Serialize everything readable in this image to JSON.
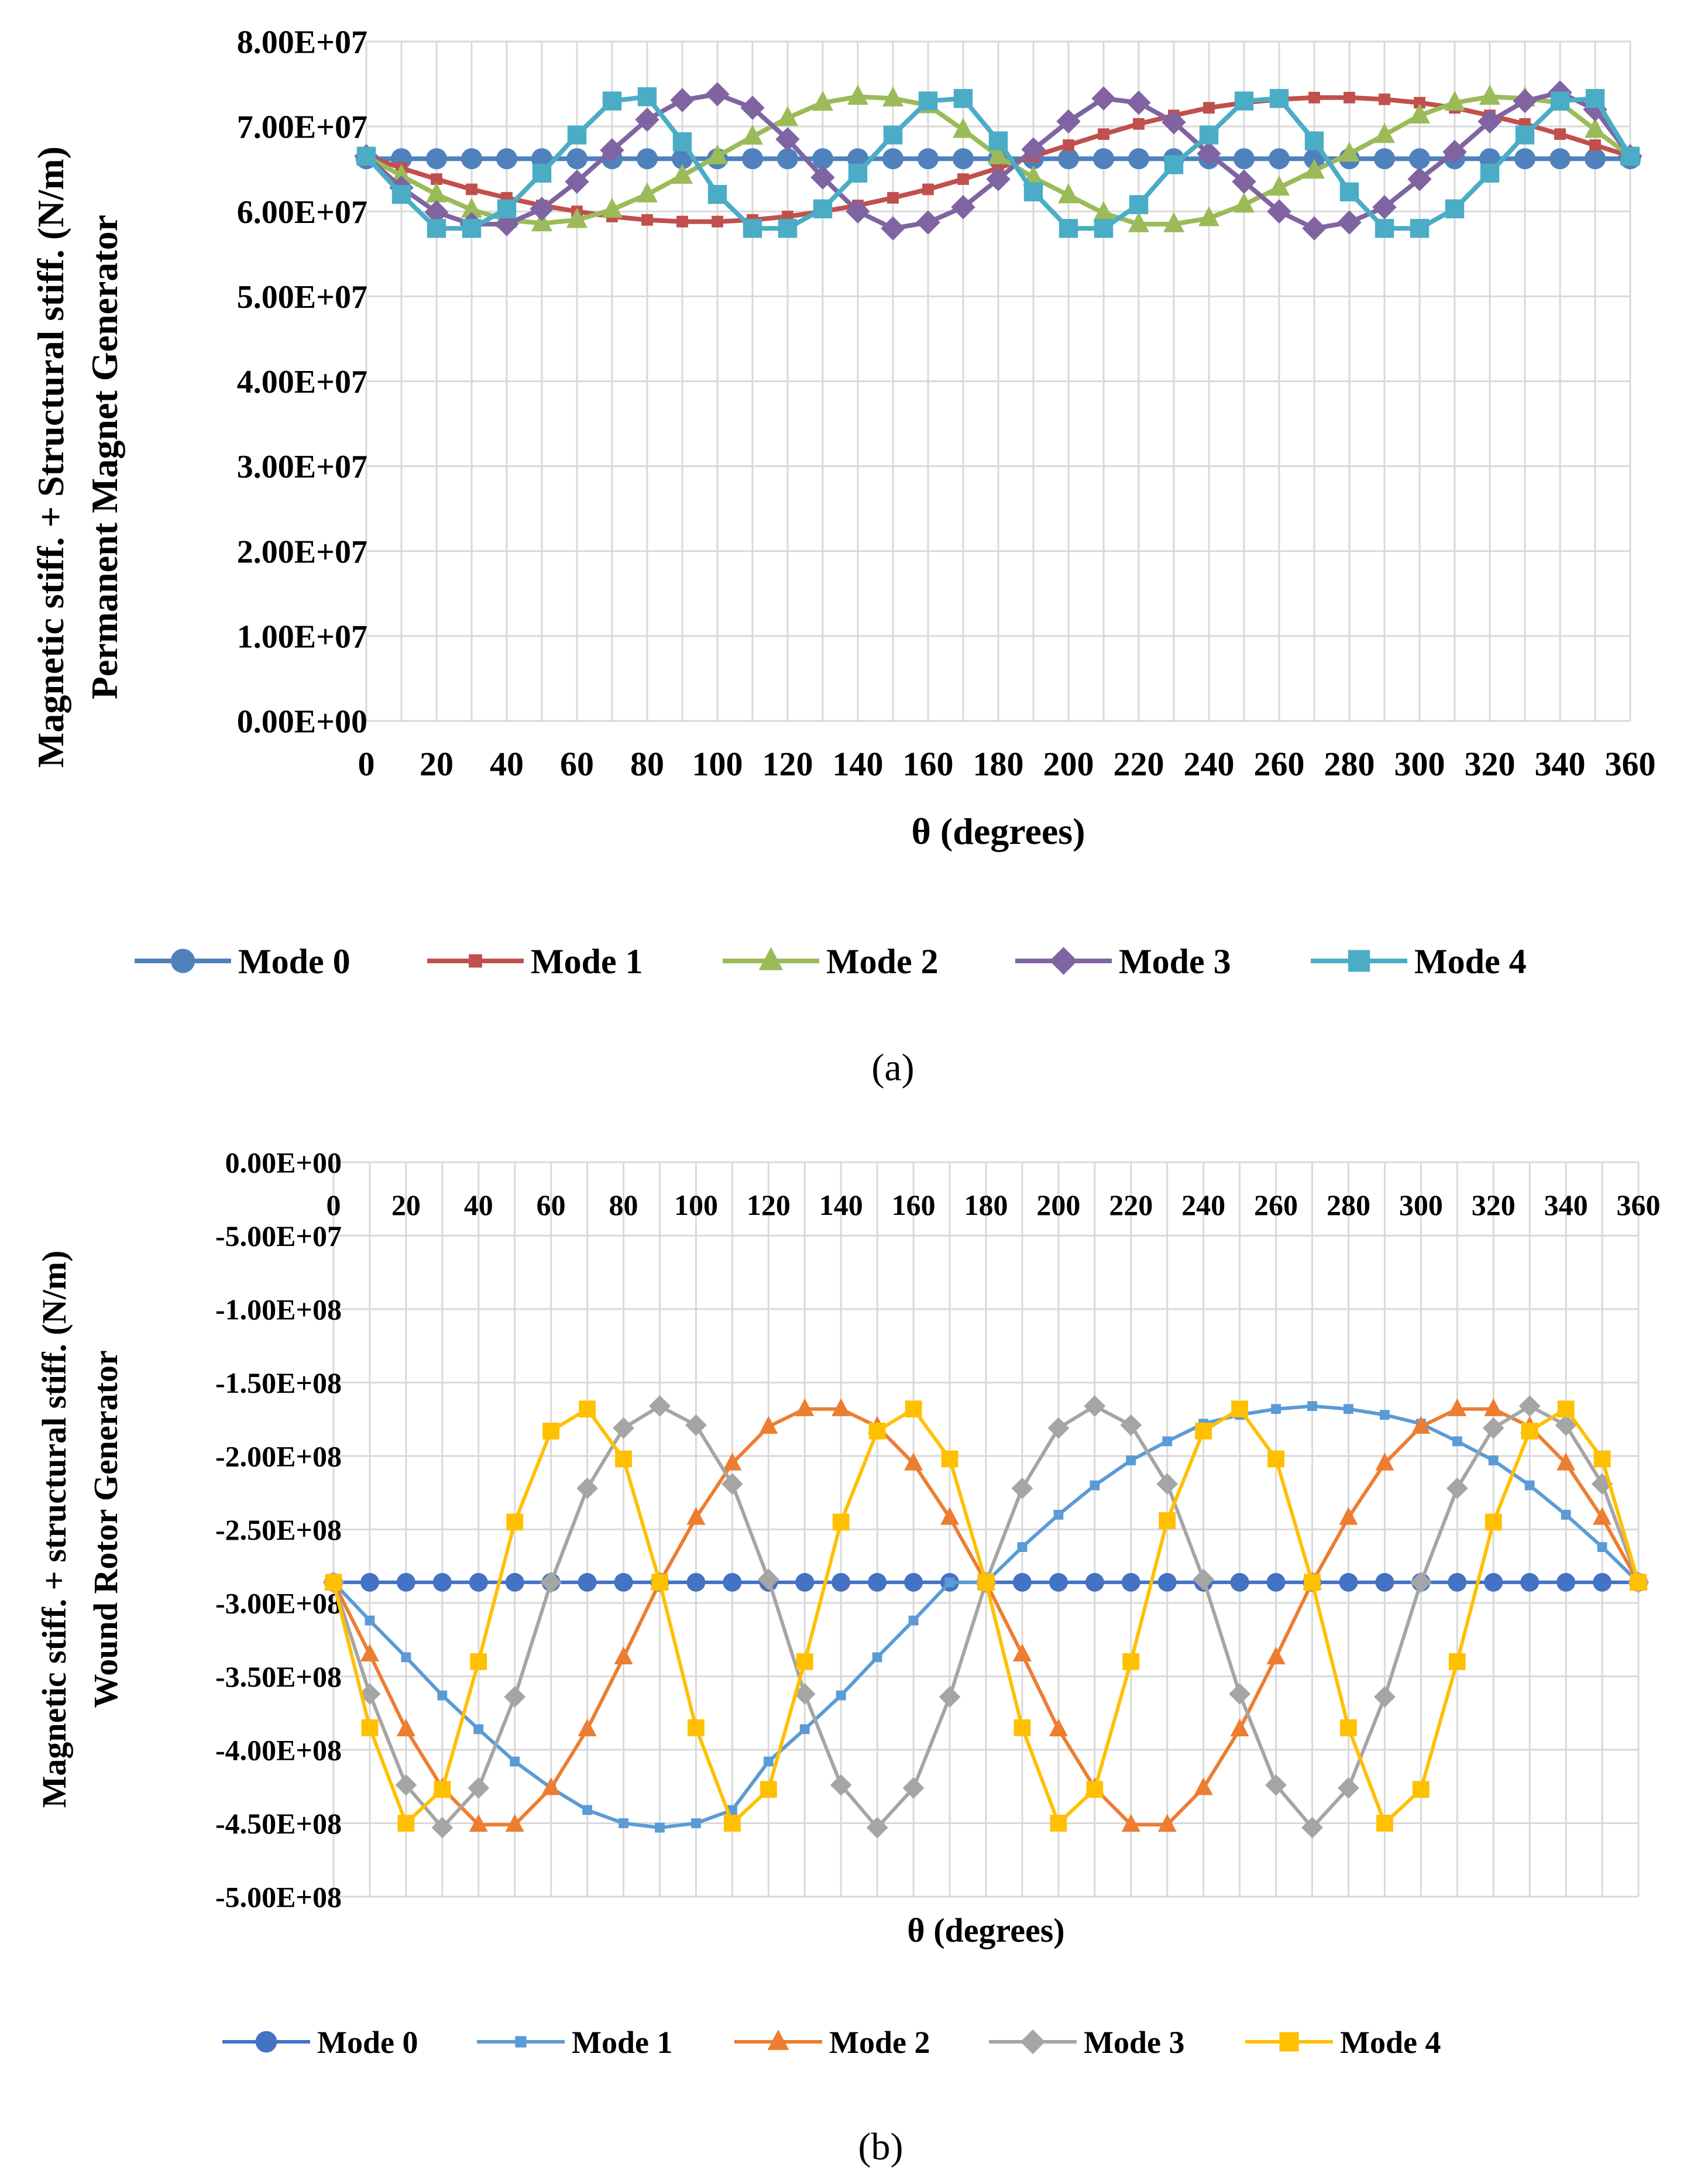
{
  "colors": {
    "a": {
      "mode0": "#4F81BD",
      "mode1": "#C0504D",
      "mode2": "#9BBB59",
      "mode3": "#8064A2",
      "mode4": "#4BACC6"
    },
    "b": {
      "mode0": "#4472C4",
      "mode1": "#5B9BD5",
      "mode2": "#ED7D31",
      "mode3": "#A5A5A5",
      "mode4": "#FFC000"
    },
    "grid": "#d9d9d9",
    "text": "#000000"
  },
  "chart_data": [
    {
      "panel_label": "(a)",
      "panel_letter": "a",
      "type": "line",
      "title": "",
      "xlabel": "θ (degrees)",
      "ylabel_line1": "Magnetic stiff. + Structural stiff. (N/m)",
      "ylabel_line2": "Permanent Magnet Generator",
      "xlim": [
        0,
        360
      ],
      "ylim": [
        0,
        80000000
      ],
      "x_ticks": [
        0,
        20,
        40,
        60,
        80,
        100,
        120,
        140,
        160,
        180,
        200,
        220,
        240,
        260,
        280,
        300,
        320,
        340,
        360
      ],
      "x_tick_labels": [
        "0",
        "20",
        "40",
        "60",
        "80",
        "100",
        "120",
        "140",
        "160",
        "180",
        "200",
        "220",
        "240",
        "260",
        "280",
        "300",
        "320",
        "340",
        "360"
      ],
      "y_ticks": [
        0,
        10000000,
        20000000,
        30000000,
        40000000,
        50000000,
        60000000,
        70000000,
        80000000
      ],
      "y_tick_labels": [
        "0.00E+00",
        "1.00E+07",
        "2.00E+07",
        "3.00E+07",
        "4.00E+07",
        "5.00E+07",
        "6.00E+07",
        "7.00E+07",
        "8.00E+07"
      ],
      "grid": "vertical and horizontal, every 10 degrees",
      "x_axis_position": "bottom",
      "legend_position": "bottom",
      "x": [
        0,
        10,
        20,
        30,
        40,
        50,
        60,
        70,
        80,
        90,
        100,
        110,
        120,
        130,
        140,
        150,
        160,
        170,
        180,
        190,
        200,
        210,
        220,
        230,
        240,
        250,
        260,
        270,
        280,
        290,
        300,
        310,
        320,
        330,
        340,
        350,
        360
      ],
      "series": [
        {
          "name": "Mode 0",
          "marker": "circle",
          "color_key": "mode0",
          "values": [
            66200000,
            66200000,
            66200000,
            66200000,
            66200000,
            66200000,
            66200000,
            66200000,
            66200000,
            66200000,
            66200000,
            66200000,
            66200000,
            66200000,
            66200000,
            66200000,
            66200000,
            66200000,
            66200000,
            66200000,
            66200000,
            66200000,
            66200000,
            66200000,
            66200000,
            66200000,
            66200000,
            66200000,
            66200000,
            66200000,
            66200000,
            66200000,
            66200000,
            66200000,
            66200000,
            66200000,
            66200000
          ]
        },
        {
          "name": "Mode 1",
          "marker": "x-square",
          "color_key": "mode1",
          "values": [
            66500000,
            65100000,
            63800000,
            62600000,
            61600000,
            60700000,
            60000000,
            59400000,
            59000000,
            58800000,
            58800000,
            59000000,
            59400000,
            60000000,
            60700000,
            61600000,
            62600000,
            63800000,
            65100000,
            66500000,
            67800000,
            69100000,
            70300000,
            71300000,
            72200000,
            72800000,
            73200000,
            73400000,
            73400000,
            73200000,
            72800000,
            72200000,
            71300000,
            70300000,
            69100000,
            67800000,
            66500000
          ]
        },
        {
          "name": "Mode 2",
          "marker": "triangle",
          "color_key": "mode2",
          "values": [
            66500000,
            64200000,
            62000000,
            60200000,
            59000000,
            58600000,
            59000000,
            60200000,
            62000000,
            64200000,
            66500000,
            68800000,
            71000000,
            72800000,
            73500000,
            73300000,
            72500000,
            69600000,
            66500000,
            64000000,
            61900000,
            59800000,
            58500000,
            58500000,
            59200000,
            60800000,
            62800000,
            64800000,
            66800000,
            69000000,
            71300000,
            72800000,
            73500000,
            73300000,
            72800000,
            69600000,
            66500000
          ]
        },
        {
          "name": "Mode 3",
          "marker": "diamond",
          "color_key": "mode3",
          "values": [
            66500000,
            62800000,
            59900000,
            58500000,
            58500000,
            60300000,
            63500000,
            67200000,
            70800000,
            73100000,
            73800000,
            72200000,
            68500000,
            64000000,
            60000000,
            58000000,
            58700000,
            60500000,
            63800000,
            67300000,
            70600000,
            73300000,
            72800000,
            70500000,
            66800000,
            63500000,
            60000000,
            58000000,
            58700000,
            60500000,
            63800000,
            67000000,
            70600000,
            73000000,
            74000000,
            72000000,
            66500000
          ]
        },
        {
          "name": "Mode 4",
          "marker": "square",
          "color_key": "mode4",
          "values": [
            66500000,
            62000000,
            58000000,
            58000000,
            60300000,
            64500000,
            69000000,
            73000000,
            73500000,
            68200000,
            62000000,
            58000000,
            58000000,
            60300000,
            64500000,
            69000000,
            73000000,
            73300000,
            68300000,
            62300000,
            58000000,
            58000000,
            60800000,
            65500000,
            69000000,
            73000000,
            73300000,
            68300000,
            62300000,
            58000000,
            58000000,
            60300000,
            64500000,
            69000000,
            73000000,
            73300000,
            66500000
          ]
        }
      ]
    },
    {
      "panel_label": "(b)",
      "panel_letter": "b",
      "type": "line",
      "title": "",
      "xlabel": "θ (degrees)",
      "ylabel_line1": "Magnetic stiff. + structural stiff. (N/m)",
      "ylabel_line2": "Wound Rotor Generator",
      "xlim": [
        0,
        360
      ],
      "ylim": [
        -500000000,
        0
      ],
      "x_ticks": [
        0,
        20,
        40,
        60,
        80,
        100,
        120,
        140,
        160,
        180,
        200,
        220,
        240,
        260,
        280,
        300,
        320,
        340,
        360
      ],
      "x_tick_labels": [
        "0",
        "20",
        "40",
        "60",
        "80",
        "100",
        "120",
        "140",
        "160",
        "180",
        "200",
        "220",
        "240",
        "260",
        "280",
        "300",
        "320",
        "340",
        "360"
      ],
      "y_ticks": [
        0,
        -50000000,
        -100000000,
        -150000000,
        -200000000,
        -250000000,
        -300000000,
        -350000000,
        -400000000,
        -450000000,
        -500000000
      ],
      "y_tick_labels": [
        "0.00E+00",
        "-5.00E+07",
        "-1.00E+08",
        "-1.50E+08",
        "-2.00E+08",
        "-2.50E+08",
        "-3.00E+08",
        "-3.50E+08",
        "-4.00E+08",
        "-4.50E+08",
        "-5.00E+08"
      ],
      "grid": "vertical and horizontal, every 10 degrees",
      "x_axis_position": "top",
      "legend_position": "bottom",
      "x": [
        0,
        10,
        20,
        30,
        40,
        50,
        60,
        70,
        80,
        90,
        100,
        110,
        120,
        130,
        140,
        150,
        160,
        170,
        180,
        190,
        200,
        210,
        220,
        230,
        240,
        250,
        260,
        270,
        280,
        290,
        300,
        310,
        320,
        330,
        340,
        350,
        360
      ],
      "series": [
        {
          "name": "Mode 0",
          "marker": "circle",
          "color_key": "mode0",
          "values": [
            -286000000,
            -286000000,
            -286000000,
            -286000000,
            -286000000,
            -286000000,
            -286000000,
            -286000000,
            -286000000,
            -286000000,
            -286000000,
            -286000000,
            -286000000,
            -286000000,
            -286000000,
            -286000000,
            -286000000,
            -286000000,
            -286000000,
            -286000000,
            -286000000,
            -286000000,
            -286000000,
            -286000000,
            -286000000,
            -286000000,
            -286000000,
            -286000000,
            -286000000,
            -286000000,
            -286000000,
            -286000000,
            -286000000,
            -286000000,
            -286000000,
            -286000000,
            -286000000
          ]
        },
        {
          "name": "Mode 1",
          "marker": "small-square",
          "color_key": "mode1",
          "values": [
            -286000000,
            -312000000,
            -337000000,
            -363000000,
            -386000000,
            -408000000,
            -426000000,
            -441000000,
            -450000000,
            -453000000,
            -450000000,
            -441000000,
            -408000000,
            -386000000,
            -363000000,
            -337000000,
            -312000000,
            -286000000,
            -286000000,
            -262000000,
            -240000000,
            -220000000,
            -203000000,
            -190000000,
            -178000000,
            -172000000,
            -168000000,
            -166000000,
            -168000000,
            -172000000,
            -178000000,
            -190000000,
            -203000000,
            -220000000,
            -240000000,
            -262000000,
            -286000000
          ]
        },
        {
          "name": "Mode 2",
          "marker": "triangle",
          "color_key": "mode2",
          "values": [
            -286000000,
            -335000000,
            -386000000,
            -426000000,
            -451000000,
            -451000000,
            -426000000,
            -386000000,
            -337000000,
            -286000000,
            -242000000,
            -205000000,
            -180000000,
            -168000000,
            -168000000,
            -180000000,
            -205000000,
            -242000000,
            -286000000,
            -335000000,
            -386000000,
            -426000000,
            -451000000,
            -451000000,
            -426000000,
            -386000000,
            -337000000,
            -286000000,
            -242000000,
            -205000000,
            -180000000,
            -168000000,
            -168000000,
            -180000000,
            -205000000,
            -242000000,
            -286000000
          ]
        },
        {
          "name": "Mode 3",
          "marker": "diamond",
          "color_key": "mode3",
          "values": [
            -286000000,
            -362000000,
            -424000000,
            -453000000,
            -426000000,
            -364000000,
            -286000000,
            -222000000,
            -181000000,
            -166000000,
            -179000000,
            -219000000,
            -284000000,
            -362000000,
            -424000000,
            -453000000,
            -426000000,
            -364000000,
            -286000000,
            -222000000,
            -181000000,
            -166000000,
            -179000000,
            -219000000,
            -284000000,
            -362000000,
            -424000000,
            -453000000,
            -426000000,
            -364000000,
            -286000000,
            -222000000,
            -181000000,
            -166000000,
            -179000000,
            -219000000,
            -286000000
          ]
        },
        {
          "name": "Mode 4",
          "marker": "square",
          "color_key": "mode4",
          "values": [
            -286000000,
            -385000000,
            -450000000,
            -427000000,
            -340000000,
            -245000000,
            -183000000,
            -168000000,
            -202000000,
            -286000000,
            -385000000,
            -450000000,
            -427000000,
            -340000000,
            -245000000,
            -183000000,
            -168000000,
            -202000000,
            -286000000,
            -385000000,
            -450000000,
            -427000000,
            -340000000,
            -244000000,
            -183000000,
            -168000000,
            -202000000,
            -286000000,
            -385000000,
            -450000000,
            -427000000,
            -340000000,
            -245000000,
            -183000000,
            -168000000,
            -202000000,
            -286000000
          ]
        }
      ]
    }
  ]
}
